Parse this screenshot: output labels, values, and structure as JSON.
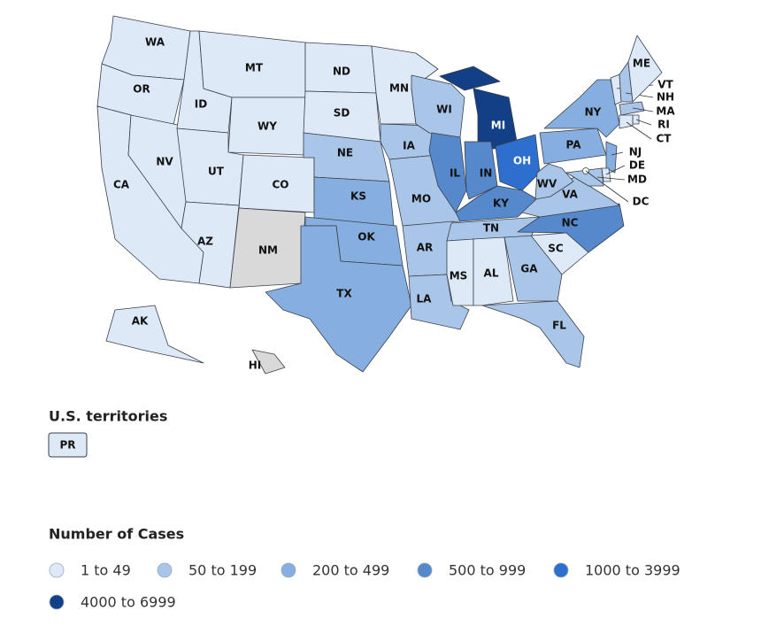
{
  "map": {
    "bins": [
      {
        "label": "1 to 49",
        "color": "#dde9f7"
      },
      {
        "label": "50 to 199",
        "color": "#a9c6e8"
      },
      {
        "label": "200 to 499",
        "color": "#86aedf"
      },
      {
        "label": "500 to 999",
        "color": "#5589cc"
      },
      {
        "label": "1000 to 3999",
        "color": "#2c6fcf"
      },
      {
        "label": "4000 to 6999",
        "color": "#123f86"
      }
    ],
    "no_data_color": "#d9d9d9",
    "states": [
      {
        "label": "WA",
        "bin": 0
      },
      {
        "label": "OR",
        "bin": 0
      },
      {
        "label": "CA",
        "bin": 0
      },
      {
        "label": "NV",
        "bin": 0
      },
      {
        "label": "ID",
        "bin": 0
      },
      {
        "label": "MT",
        "bin": 0
      },
      {
        "label": "WY",
        "bin": 0
      },
      {
        "label": "UT",
        "bin": 0
      },
      {
        "label": "AZ",
        "bin": 0
      },
      {
        "label": "CO",
        "bin": 0
      },
      {
        "label": "NM",
        "bin": null
      },
      {
        "label": "ND",
        "bin": 0
      },
      {
        "label": "SD",
        "bin": 0
      },
      {
        "label": "NE",
        "bin": 1
      },
      {
        "label": "KS",
        "bin": 2
      },
      {
        "label": "OK",
        "bin": 2
      },
      {
        "label": "TX",
        "bin": 2
      },
      {
        "label": "MN",
        "bin": 0
      },
      {
        "label": "IA",
        "bin": 1
      },
      {
        "label": "MO",
        "bin": 1
      },
      {
        "label": "AR",
        "bin": 1
      },
      {
        "label": "LA",
        "bin": 1
      },
      {
        "label": "WI",
        "bin": 1
      },
      {
        "label": "IL",
        "bin": 3
      },
      {
        "label": "MI",
        "bin": 5
      },
      {
        "label": "IN",
        "bin": 3
      },
      {
        "label": "OH",
        "bin": 4
      },
      {
        "label": "KY",
        "bin": 3
      },
      {
        "label": "TN",
        "bin": 1
      },
      {
        "label": "MS",
        "bin": 0
      },
      {
        "label": "AL",
        "bin": 0
      },
      {
        "label": "GA",
        "bin": 1
      },
      {
        "label": "FL",
        "bin": 1
      },
      {
        "label": "SC",
        "bin": 0
      },
      {
        "label": "NC",
        "bin": 3
      },
      {
        "label": "VA",
        "bin": 1
      },
      {
        "label": "WV",
        "bin": 1
      },
      {
        "label": "PA",
        "bin": 2
      },
      {
        "label": "NY",
        "bin": 2
      },
      {
        "label": "VT",
        "bin": 0
      },
      {
        "label": "NH",
        "bin": 1
      },
      {
        "label": "ME",
        "bin": 0
      },
      {
        "label": "MA",
        "bin": 1
      },
      {
        "label": "RI",
        "bin": 0
      },
      {
        "label": "CT",
        "bin": 0
      },
      {
        "label": "NJ",
        "bin": 2
      },
      {
        "label": "DE",
        "bin": 0
      },
      {
        "label": "MD",
        "bin": 1
      },
      {
        "label": "DC",
        "bin": 0
      },
      {
        "label": "AK",
        "bin": 0
      },
      {
        "label": "HI",
        "bin": null
      }
    ],
    "territories_title": "U.S. territories",
    "territories": [
      {
        "label": "PR",
        "bin": 0
      }
    ],
    "legend_title": "Number of Cases"
  }
}
